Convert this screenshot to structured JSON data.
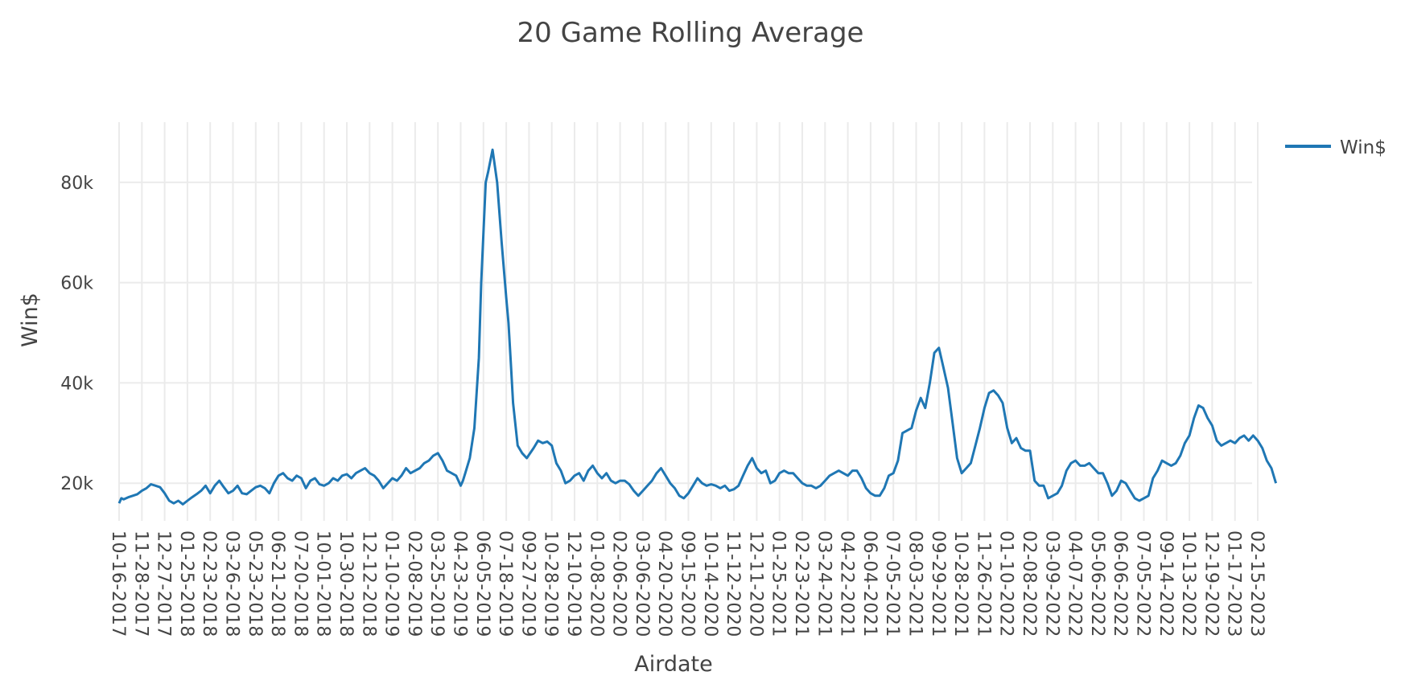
{
  "chart_data": {
    "type": "line",
    "title": "20 Game Rolling Average",
    "xlabel": "Airdate",
    "ylabel": "Win$",
    "ylim": [
      12500,
      92000
    ],
    "y_ticks": [
      20000,
      40000,
      60000,
      80000
    ],
    "y_tick_labels": [
      "20k",
      "40k",
      "60k",
      "80k"
    ],
    "grid": true,
    "legend_position": "top-right",
    "colors": {
      "series": "#1f77b4",
      "grid": "#ebebeb",
      "text": "#444444"
    },
    "x_tick_labels": [
      "10-16-2017",
      "11-28-2017",
      "12-27-2017",
      "01-25-2018",
      "02-23-2018",
      "03-26-2018",
      "05-23-2018",
      "06-21-2018",
      "07-20-2018",
      "10-01-2018",
      "10-30-2018",
      "12-12-2018",
      "01-10-2019",
      "02-08-2019",
      "03-25-2019",
      "04-23-2019",
      "06-05-2019",
      "07-18-2019",
      "09-27-2019",
      "10-28-2019",
      "12-10-2019",
      "01-08-2020",
      "02-06-2020",
      "03-06-2020",
      "04-20-2020",
      "09-15-2020",
      "10-14-2020",
      "11-12-2020",
      "12-11-2020",
      "01-25-2021",
      "02-23-2021",
      "03-24-2021",
      "04-22-2021",
      "06-04-2021",
      "07-05-2021",
      "08-03-2021",
      "09-29-2021",
      "10-28-2021",
      "11-26-2021",
      "01-10-2022",
      "02-08-2022",
      "03-09-2022",
      "04-07-2022",
      "05-06-2022",
      "06-06-2022",
      "07-05-2022",
      "09-14-2022",
      "10-13-2022",
      "12-19-2022",
      "01-17-2023",
      "02-15-2023"
    ],
    "series": [
      {
        "name": "Win$",
        "x": [
          0,
          0.1,
          0.2,
          0.4,
          0.6,
          0.8,
          1.0,
          1.2,
          1.4,
          1.6,
          1.8,
          2.0,
          2.2,
          2.4,
          2.6,
          2.8,
          3.0,
          3.2,
          3.4,
          3.6,
          3.8,
          4.0,
          4.2,
          4.4,
          4.6,
          4.8,
          5.0,
          5.2,
          5.4,
          5.6,
          5.8,
          6.0,
          6.2,
          6.4,
          6.6,
          6.8,
          7.0,
          7.2,
          7.4,
          7.6,
          7.8,
          8.0,
          8.2,
          8.4,
          8.6,
          8.8,
          9.0,
          9.2,
          9.4,
          9.6,
          9.8,
          10.0,
          10.2,
          10.4,
          10.6,
          10.8,
          11.0,
          11.2,
          11.4,
          11.6,
          11.8,
          12.0,
          12.2,
          12.4,
          12.6,
          12.8,
          13.0,
          13.2,
          13.4,
          13.6,
          13.8,
          14.0,
          14.2,
          14.4,
          14.6,
          14.8,
          15.0,
          15.1,
          15.2,
          15.4,
          15.6,
          15.8,
          15.9,
          16.0,
          16.1,
          16.2,
          16.4,
          16.6,
          16.8,
          17.0,
          17.1,
          17.2,
          17.3,
          17.5,
          17.7,
          17.9,
          18.2,
          18.4,
          18.6,
          18.8,
          19.0,
          19.2,
          19.4,
          19.6,
          19.8,
          20.0,
          20.2,
          20.4,
          20.6,
          20.8,
          21.0,
          21.2,
          21.4,
          21.6,
          21.8,
          22.0,
          22.2,
          22.4,
          22.6,
          22.8,
          23.0,
          23.2,
          23.4,
          23.6,
          23.8,
          24.0,
          24.2,
          24.4,
          24.6,
          24.8,
          25.0,
          25.2,
          25.4,
          25.6,
          25.8,
          26.0,
          26.2,
          26.4,
          26.6,
          26.8,
          27.0,
          27.2,
          27.4,
          27.6,
          27.8,
          28.0,
          28.2,
          28.4,
          28.6,
          28.8,
          29.0,
          29.2,
          29.4,
          29.6,
          29.8,
          30.0,
          30.2,
          30.4,
          30.6,
          30.8,
          31.0,
          31.2,
          31.4,
          31.6,
          31.8,
          32.0,
          32.2,
          32.4,
          32.6,
          32.8,
          33.0,
          33.2,
          33.4,
          33.6,
          33.8,
          34.0,
          34.2,
          34.4,
          34.6,
          34.8,
          35.0,
          35.2,
          35.4,
          35.6,
          35.8,
          36.0,
          36.2,
          36.4,
          36.6,
          36.8,
          37.0,
          37.2,
          37.4,
          37.6,
          37.8,
          38.0,
          38.2,
          38.4,
          38.6,
          38.8,
          39.0,
          39.2,
          39.4,
          39.6,
          39.8,
          40.0,
          40.2,
          40.4,
          40.6,
          40.8,
          41.0,
          41.2,
          41.4,
          41.6,
          41.8,
          42.0,
          42.2,
          42.4,
          42.6,
          42.8,
          43.0,
          43.2,
          43.4,
          43.6,
          43.8,
          44.0,
          44.2,
          44.4,
          44.6,
          44.8,
          45.0,
          45.2,
          45.4,
          45.6,
          45.8,
          46.0,
          46.2,
          46.4,
          46.6,
          46.8,
          47.0,
          47.2,
          47.4,
          47.6,
          47.8,
          48.0,
          48.2,
          48.4,
          48.6,
          48.8,
          49.0,
          49.2,
          49.4,
          49.6,
          49.8,
          50.0,
          50.2,
          50.4,
          50.6,
          50.8
        ],
        "y": [
          16000,
          17000,
          16800,
          17200,
          17500,
          17800,
          18500,
          19000,
          19800,
          19500,
          19200,
          18000,
          16500,
          16000,
          16500,
          15800,
          16500,
          17200,
          17800,
          18500,
          19500,
          18000,
          19500,
          20500,
          19200,
          18000,
          18500,
          19500,
          18000,
          17800,
          18500,
          19200,
          19500,
          19000,
          18000,
          20000,
          21500,
          22000,
          21000,
          20500,
          21500,
          21000,
          19000,
          20500,
          21000,
          19800,
          19500,
          20000,
          21000,
          20500,
          21500,
          21800,
          21000,
          22000,
          22500,
          23000,
          22000,
          21500,
          20500,
          19000,
          20000,
          21000,
          20500,
          21500,
          23000,
          22000,
          22500,
          23000,
          24000,
          24500,
          25500,
          26000,
          24500,
          22500,
          22000,
          21500,
          19500,
          20500,
          22000,
          25000,
          31000,
          45000,
          60000,
          70000,
          80000,
          82000,
          86500,
          80000,
          68000,
          57000,
          52000,
          44000,
          36000,
          27500,
          26000,
          25000,
          27000,
          28500,
          28000,
          28300,
          27500,
          24000,
          22500,
          20000,
          20500,
          21500,
          22000,
          20500,
          22500,
          23500,
          22000,
          21000,
          22000,
          20500,
          20000,
          20500,
          20500,
          19800,
          18500,
          17500,
          18500,
          19500,
          20500,
          22000,
          23000,
          21500,
          20000,
          19000,
          17500,
          17000,
          18000,
          19500,
          21000,
          20000,
          19500,
          19800,
          19500,
          19000,
          19500,
          18500,
          18800,
          19500,
          21500,
          23500,
          25000,
          23000,
          22000,
          22500,
          20000,
          20500,
          22000,
          22500,
          22000,
          22000,
          21000,
          20000,
          19500,
          19500,
          19000,
          19500,
          20500,
          21500,
          22000,
          22500,
          22000,
          21500,
          22500,
          22500,
          21000,
          19000,
          18000,
          17500,
          17500,
          19000,
          21500,
          22000,
          24500,
          30000,
          30500,
          31000,
          34500,
          37000,
          35000,
          40000,
          46000,
          47000,
          43000,
          39000,
          32000,
          25000,
          22000,
          23000,
          24000,
          27500,
          31000,
          35000,
          38000,
          38500,
          37500,
          36000,
          31000,
          28000,
          29000,
          27000,
          26500,
          26500,
          20500,
          19500,
          19500,
          17000,
          17500,
          18000,
          19500,
          22500,
          24000,
          24500,
          23500,
          23500,
          24000,
          23000,
          22000,
          22000,
          20000,
          17500,
          18500,
          20500,
          20000,
          18500,
          17000,
          16500,
          17000,
          17500,
          21000,
          22500,
          24500,
          24000,
          23500,
          24000,
          25500,
          28000,
          29500,
          33000,
          35500,
          35000,
          33000,
          31500,
          28500,
          27500,
          28000,
          28500,
          28000,
          29000,
          29500,
          28500,
          29500,
          28500,
          27000,
          24500,
          23000,
          20000
        ]
      }
    ]
  }
}
